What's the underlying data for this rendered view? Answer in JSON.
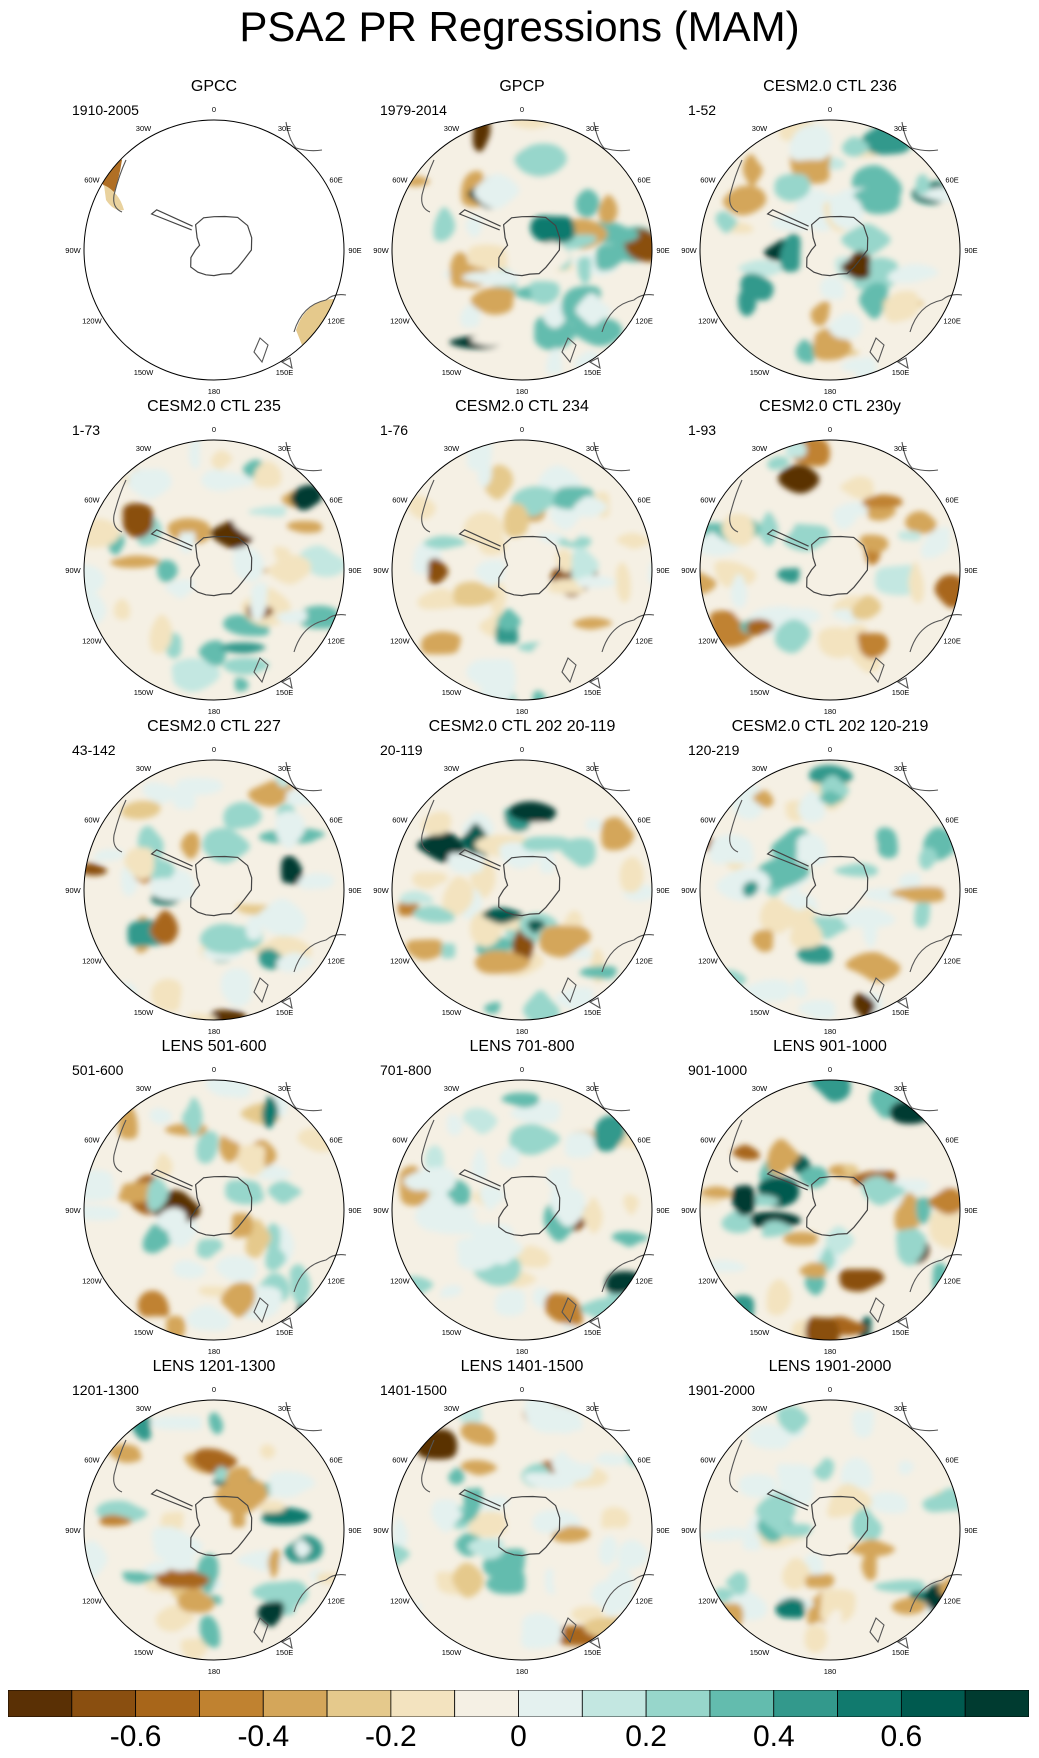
{
  "title": "PSA2 PR Regressions (MAM)",
  "longitude_labels": [
    "0",
    "30E",
    "60E",
    "90E",
    "120E",
    "150E",
    "180",
    "150W",
    "120W",
    "90W",
    "60W",
    "30W"
  ],
  "panels": [
    {
      "title": "GPCC",
      "years": "1910-2005",
      "masked": true
    },
    {
      "title": "GPCP",
      "years": "1979-2014",
      "masked": false
    },
    {
      "title": "CESM2.0 CTL 236",
      "years": "1-52",
      "masked": false
    },
    {
      "title": "CESM2.0 CTL 235",
      "years": "1-73",
      "masked": false
    },
    {
      "title": "CESM2.0 CTL 234",
      "years": "1-76",
      "masked": false
    },
    {
      "title": "CESM2.0 CTL 230y",
      "years": "1-93",
      "masked": false
    },
    {
      "title": "CESM2.0 CTL 227",
      "years": "43-142",
      "masked": false
    },
    {
      "title": "CESM2.0 CTL 202 20-119",
      "years": "20-119",
      "masked": false
    },
    {
      "title": "CESM2.0 CTL 202 120-219",
      "years": "120-219",
      "masked": false
    },
    {
      "title": "LENS 501-600",
      "years": "501-600",
      "masked": false
    },
    {
      "title": "LENS 701-800",
      "years": "701-800",
      "masked": false
    },
    {
      "title": "LENS 901-1000",
      "years": "901-1000",
      "masked": false
    },
    {
      "title": "LENS 1201-1300",
      "years": "1201-1300",
      "masked": false
    },
    {
      "title": "LENS 1401-1500",
      "years": "1401-1500",
      "masked": false
    },
    {
      "title": "LENS 1901-2000",
      "years": "1901-2000",
      "masked": false
    }
  ],
  "colorbar": {
    "colors": [
      "#5a3005",
      "#8a4f10",
      "#a8661a",
      "#c08230",
      "#d4a65a",
      "#e5c98c",
      "#f3e3bf",
      "#f5f0e4",
      "#e4f1ef",
      "#c3e7e1",
      "#97d6cb",
      "#63bcae",
      "#33998c",
      "#117a6e",
      "#005a4f",
      "#003b30"
    ],
    "min": -0.8,
    "max": 0.8,
    "ticks": [
      "-0.6",
      "-0.4",
      "-0.2",
      "0",
      "0.2",
      "0.4",
      "0.6"
    ]
  }
}
